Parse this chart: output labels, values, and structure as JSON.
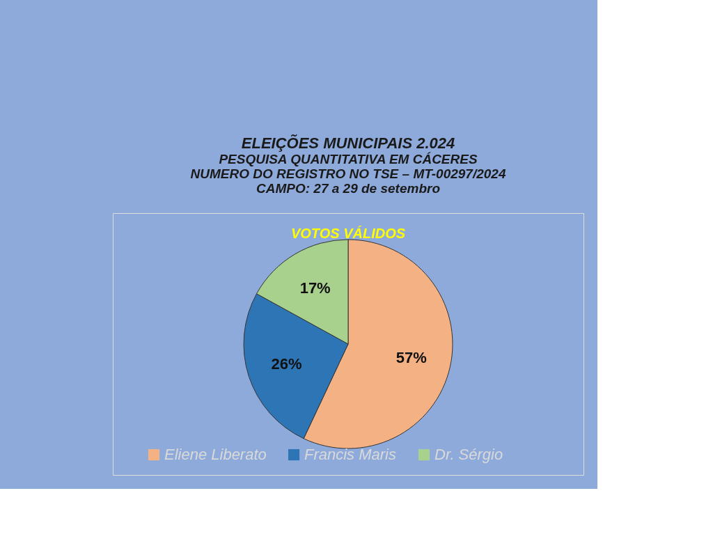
{
  "chart_data": {
    "type": "pie",
    "title": "ELEIÇÕES MUNICIPAIS 2.024",
    "subtitle": "PESQUISA QUANTITATIVA EM CÁCERES\nNUMERO DO REGISTRO NO TSE – MT-00297/2024\nCAMPO: 27 a  29  de  setembro",
    "annotations": [
      "VOTOS VÁLIDOS"
    ],
    "categories": [
      "Eliene Liberato",
      "Francis Maris",
      "Dr. Sérgio"
    ],
    "values": [
      57,
      26,
      17
    ],
    "colors": [
      "#f4b183",
      "#2e75b6",
      "#a9d18e"
    ],
    "value_labels": [
      "57%",
      "26%",
      "17%"
    ],
    "legend": "bottom"
  }
}
